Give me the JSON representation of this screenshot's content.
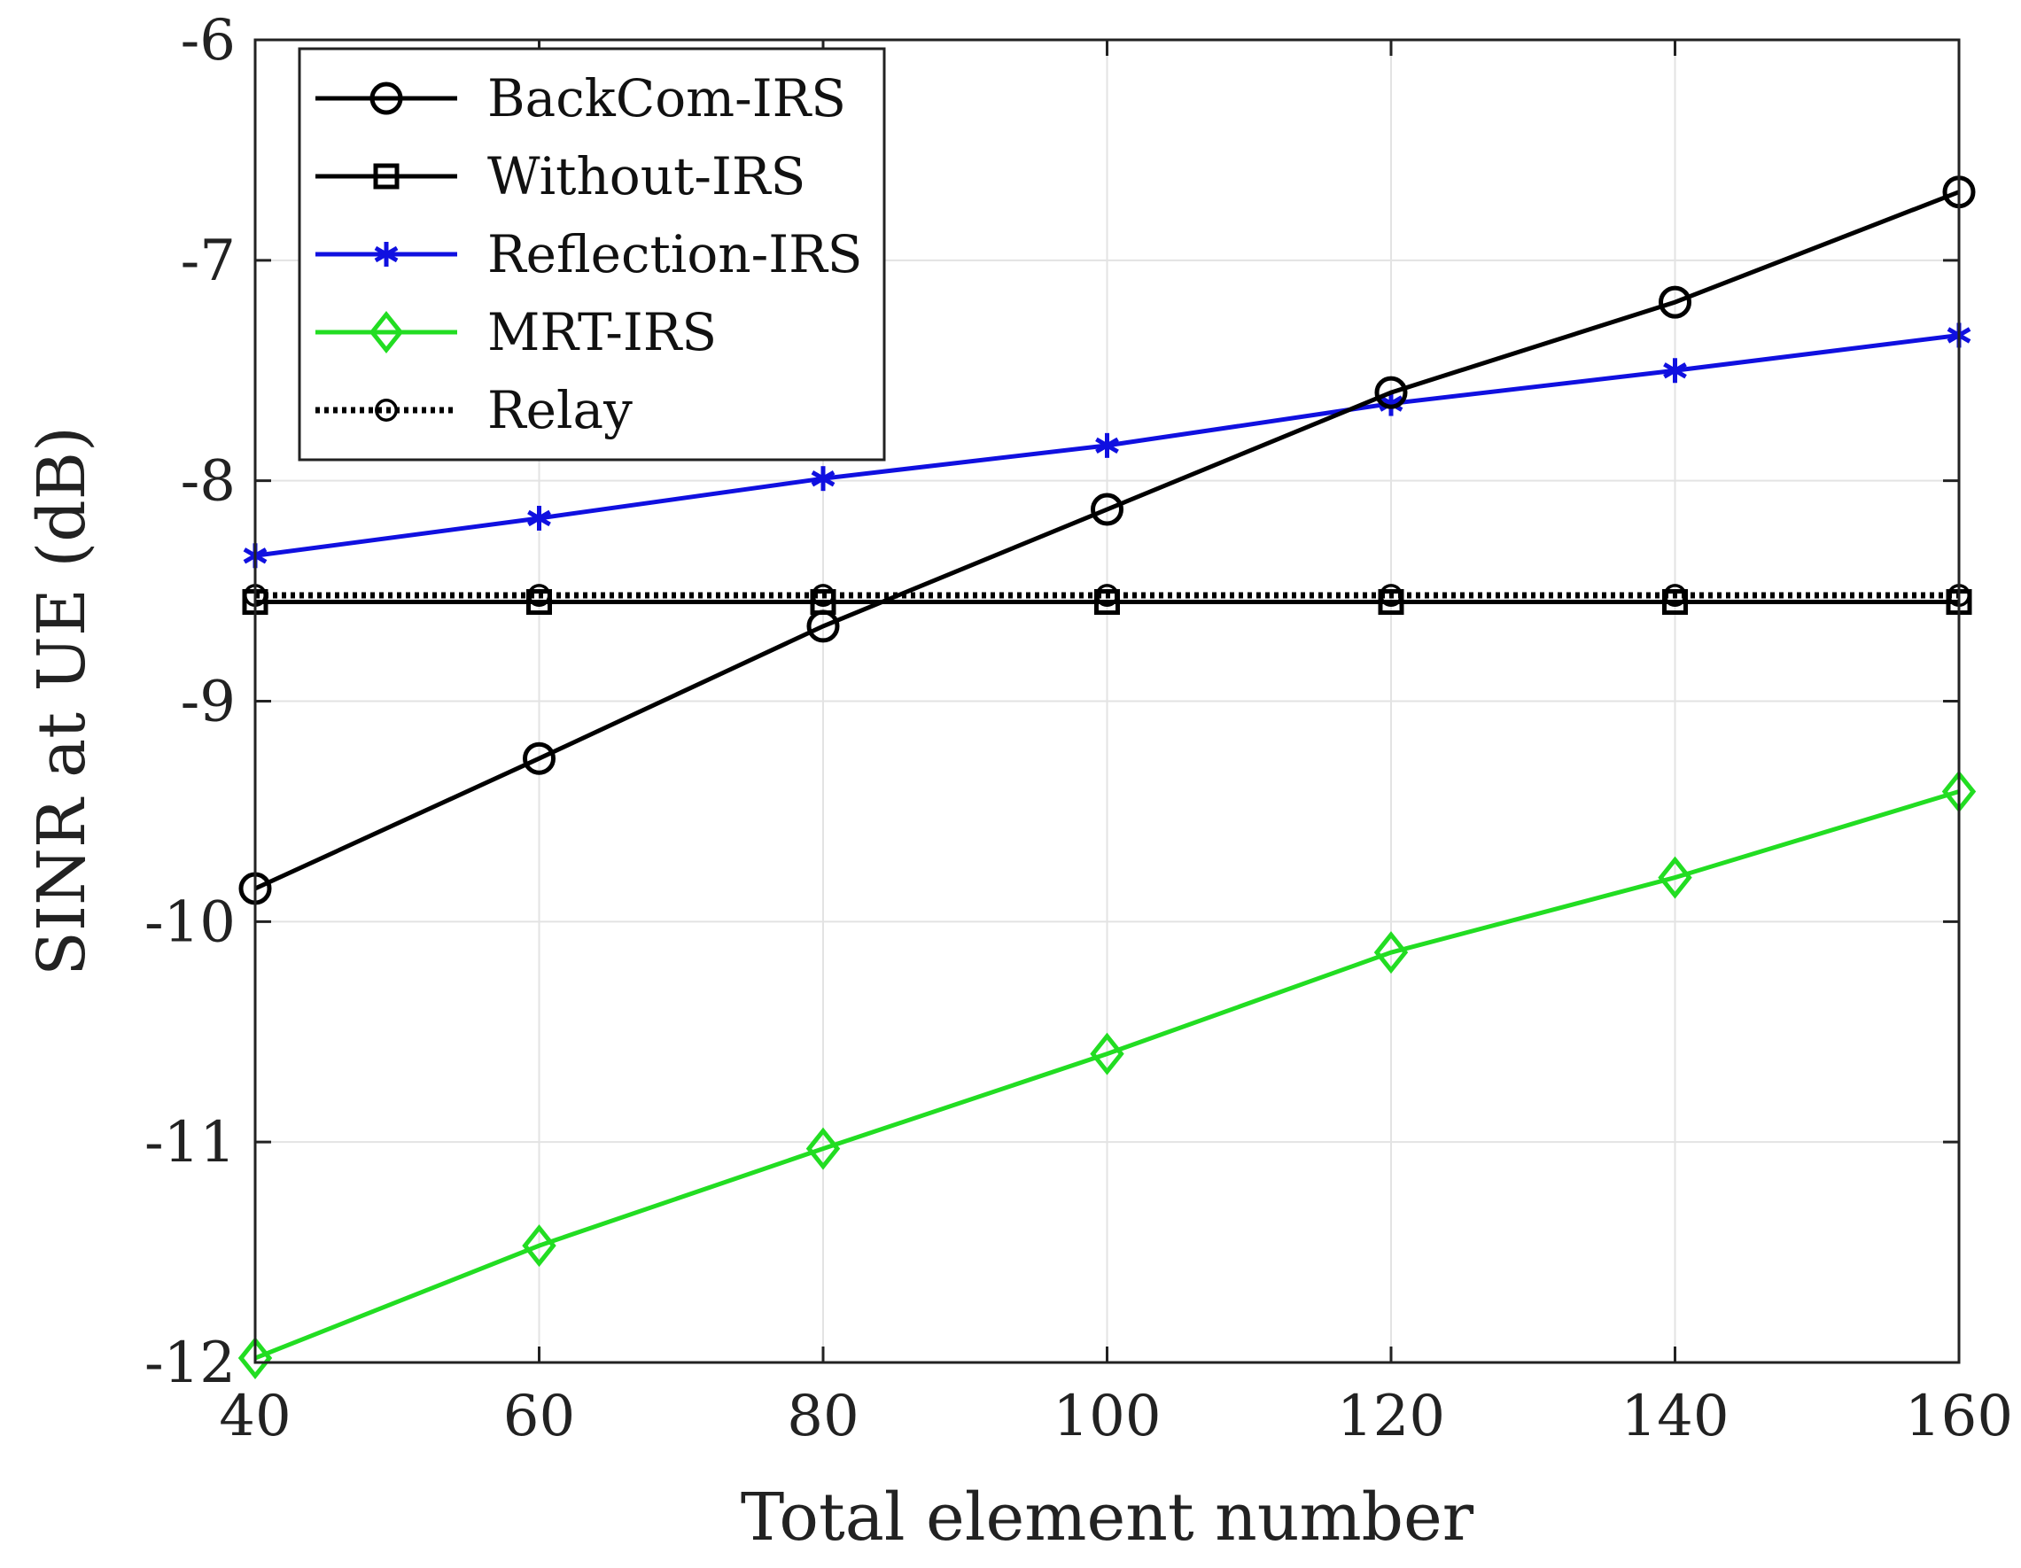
{
  "chart_data": {
    "type": "line",
    "title": "",
    "xlabel": "Total element number",
    "ylabel": "SINR at UE (dB)",
    "xlim": [
      40,
      160
    ],
    "ylim": [
      -12,
      -6
    ],
    "xticks": [
      40,
      60,
      80,
      100,
      120,
      140,
      160
    ],
    "yticks": [
      -12,
      -11,
      -10,
      -9,
      -8,
      -7,
      -6
    ],
    "grid": true,
    "legend_position": "top-left",
    "x": [
      40,
      60,
      80,
      100,
      120,
      140,
      160
    ],
    "series": [
      {
        "name": "BackCom-IRS",
        "color": "#000000",
        "marker": "circle",
        "line_style": "solid",
        "values": [
          -9.85,
          -9.26,
          -8.66,
          -8.13,
          -7.6,
          -7.19,
          -6.69
        ]
      },
      {
        "name": "Without-IRS",
        "color": "#000000",
        "marker": "square",
        "line_style": "solid",
        "values": [
          -8.55,
          -8.55,
          -8.55,
          -8.55,
          -8.55,
          -8.55,
          -8.55
        ]
      },
      {
        "name": "Reflection-IRS",
        "color": "#1010e0",
        "marker": "asterisk",
        "line_style": "solid",
        "values": [
          -8.34,
          -8.17,
          -7.99,
          -7.84,
          -7.65,
          -7.5,
          -7.34
        ]
      },
      {
        "name": "MRT-IRS",
        "color": "#22dd22",
        "marker": "diamond",
        "line_style": "solid",
        "values": [
          -11.98,
          -11.47,
          -11.03,
          -10.6,
          -10.14,
          -9.8,
          -9.41
        ]
      },
      {
        "name": "Relay",
        "color": "#000000",
        "marker": "circle",
        "line_style": "dotted",
        "values": [
          -8.52,
          -8.52,
          -8.52,
          -8.52,
          -8.52,
          -8.52,
          -8.52
        ]
      }
    ]
  }
}
